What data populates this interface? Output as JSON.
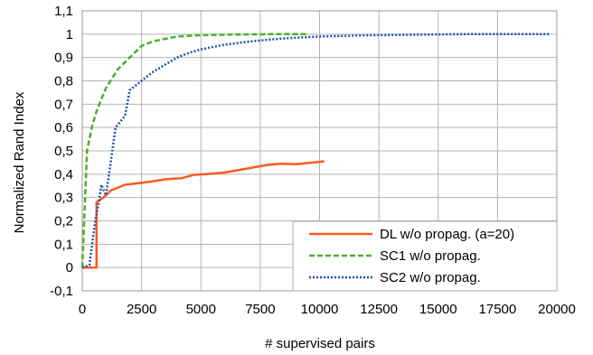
{
  "chart_data": {
    "type": "line",
    "title": "",
    "xlabel": "# supervised pairs",
    "ylabel": "Normalized Rand Index",
    "xlim": [
      0,
      20000
    ],
    "ylim": [
      -0.1,
      1.1
    ],
    "x_ticks": [
      0,
      2500,
      5000,
      7500,
      10000,
      12500,
      15000,
      17500,
      20000
    ],
    "x_tick_labels": [
      "0",
      "2500",
      "5000",
      "7500",
      "10000",
      "12500",
      "15000",
      "17500",
      "20000"
    ],
    "y_ticks": [
      -0.1,
      0,
      0.1,
      0.2,
      0.3,
      0.4,
      0.5,
      0.6,
      0.7,
      0.8,
      0.9,
      1,
      1.1
    ],
    "y_tick_labels": [
      "-0,1",
      "0",
      "0,1",
      "0,2",
      "0,3",
      "0,4",
      "0,5",
      "0,6",
      "0,7",
      "0,8",
      "0,9",
      "1",
      "1,1"
    ],
    "grid": true,
    "legend_position": "bottom-right",
    "series": [
      {
        "name": "DL w/o propag. (a=20)",
        "color": "#ff5a1f",
        "style": "solid",
        "x": [
          0,
          600,
          600,
          900,
          1200,
          1800,
          2500,
          3000,
          3500,
          4200,
          4700,
          5500,
          6000,
          7000,
          7800,
          8400,
          9000,
          10200
        ],
        "y": [
          0,
          0,
          0.28,
          0.3,
          0.33,
          0.355,
          0.363,
          0.37,
          0.378,
          0.383,
          0.397,
          0.402,
          0.407,
          0.425,
          0.44,
          0.445,
          0.443,
          0.455
        ]
      },
      {
        "name": "SC1 w/o propag.",
        "color": "#4caf2a",
        "style": "dashed",
        "x": [
          0,
          100,
          200,
          400,
          600,
          1000,
          1500,
          2000,
          2500,
          3000,
          4000,
          5000,
          6000,
          7000,
          8000,
          9000,
          9500
        ],
        "y": [
          0,
          0.25,
          0.5,
          0.6,
          0.67,
          0.77,
          0.85,
          0.9,
          0.95,
          0.97,
          0.99,
          0.996,
          0.998,
          0.999,
          1.0,
          1.0,
          1.0
        ]
      },
      {
        "name": "SC2 w/o propag.",
        "color": "#1f4fb0",
        "style": "dotted",
        "x": [
          0,
          300,
          550,
          700,
          800,
          1000,
          1100,
          1400,
          1800,
          2000,
          2500,
          3000,
          3500,
          4000,
          4500,
          5000,
          6000,
          7000,
          8000,
          9000,
          10000,
          12000,
          14000,
          16000,
          18000,
          19700
        ],
        "y": [
          0,
          0.01,
          0.2,
          0.28,
          0.355,
          0.31,
          0.38,
          0.6,
          0.65,
          0.76,
          0.8,
          0.84,
          0.87,
          0.9,
          0.92,
          0.935,
          0.955,
          0.968,
          0.978,
          0.985,
          0.99,
          0.995,
          0.998,
          1.0,
          1.0,
          1.0
        ]
      }
    ]
  }
}
